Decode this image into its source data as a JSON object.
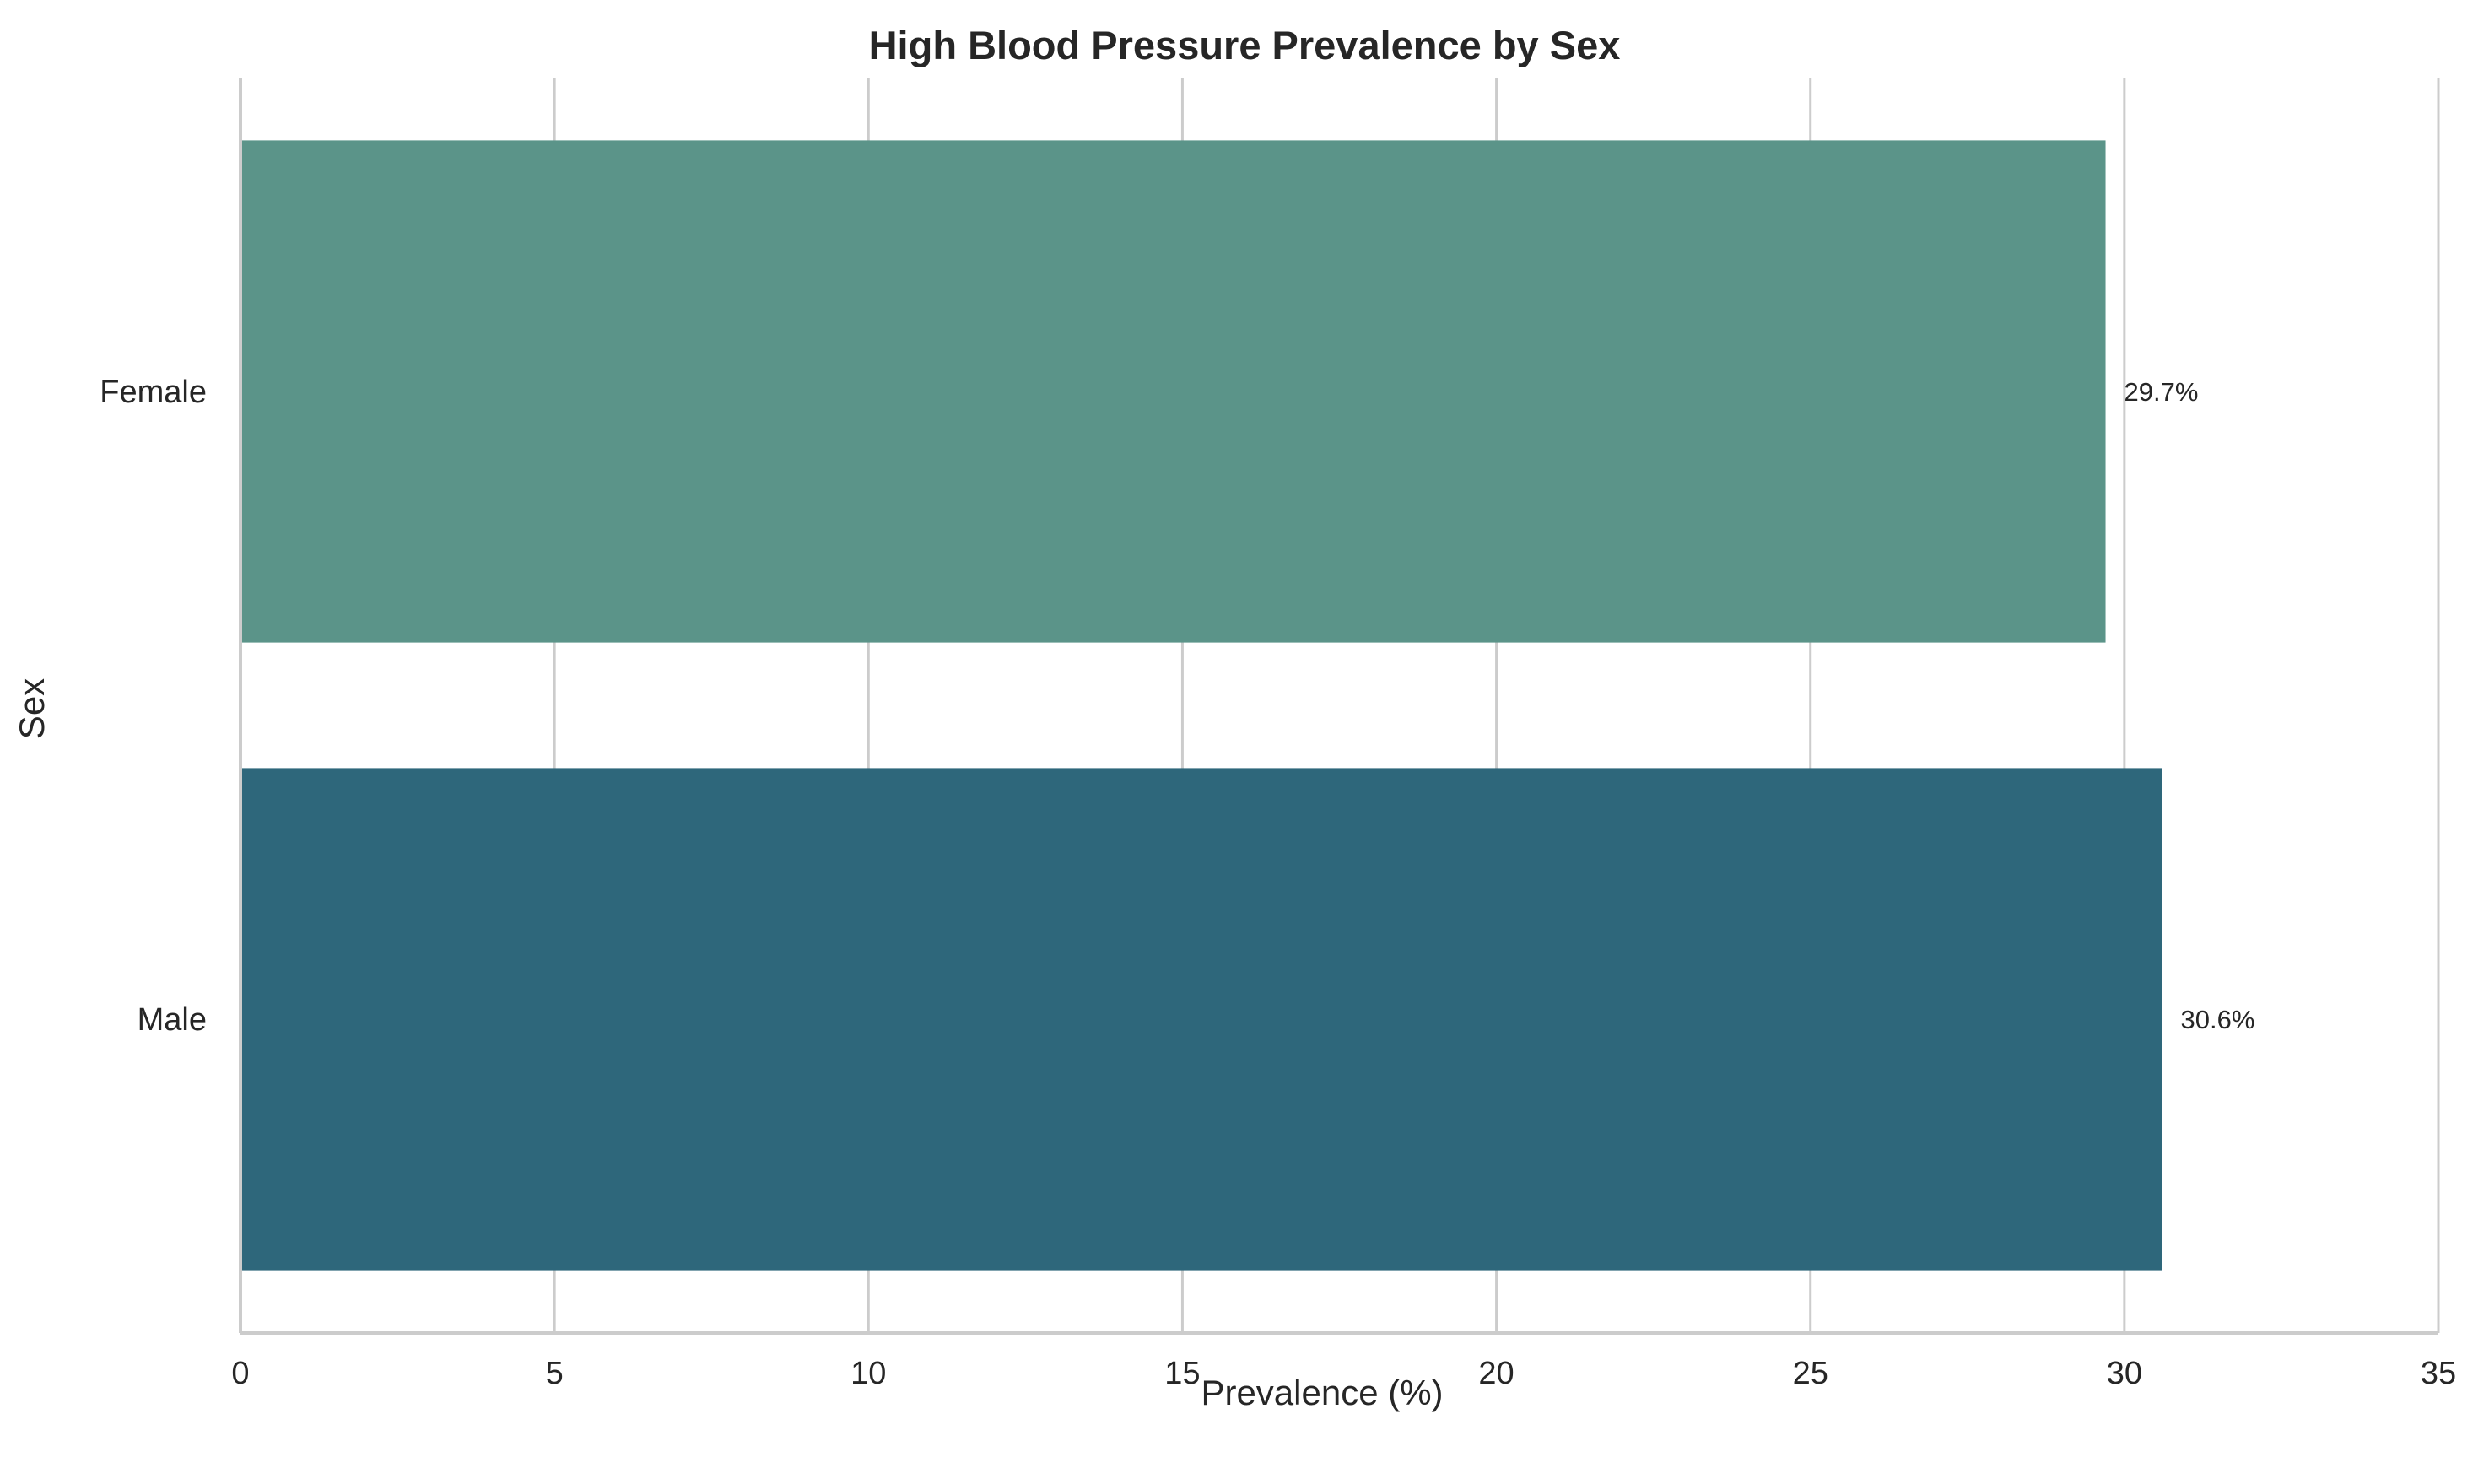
{
  "chart_data": {
    "type": "bar",
    "orientation": "horizontal",
    "title": "High Blood Pressure Prevalence by Sex",
    "xlabel": "Prevalence (%)",
    "ylabel": "Sex",
    "categories": [
      "Female",
      "Male"
    ],
    "values": [
      29.7,
      30.6
    ],
    "data_labels": [
      "29.7%",
      "30.6%"
    ],
    "bar_colors": [
      "#5b9489",
      "#2e677b"
    ],
    "xlim": [
      0,
      35
    ],
    "xticks": [
      0,
      5,
      10,
      15,
      20,
      25,
      30,
      35
    ],
    "xtick_labels": [
      "0",
      "5",
      "10",
      "15",
      "20",
      "25",
      "30",
      "35"
    ],
    "grid": "vertical",
    "legend": "none"
  },
  "colors": {
    "grid": "#cccccc",
    "axis": "#cccccc",
    "text": "#262626",
    "background": "#ffffff"
  }
}
